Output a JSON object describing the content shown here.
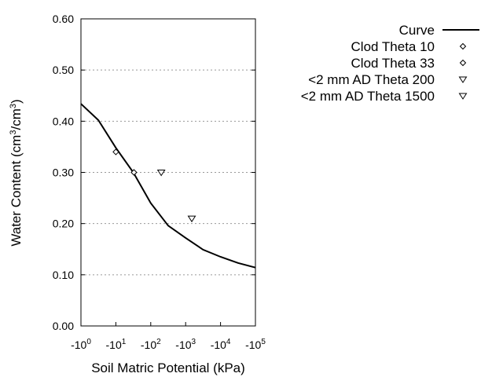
{
  "chart_data": {
    "type": "line",
    "title": "",
    "xlabel": "Soil Matric Potential (kPa)",
    "ylabel_parts": [
      "Water Content (cm",
      "3",
      "/cm",
      "3",
      ")"
    ],
    "x_scale": "log",
    "xlim": [
      1,
      100000
    ],
    "ylim": [
      0,
      0.6
    ],
    "x_ticks": [
      {
        "base": "-10",
        "exp": "0"
      },
      {
        "base": "-10",
        "exp": "1"
      },
      {
        "base": "-10",
        "exp": "2"
      },
      {
        "base": "-10",
        "exp": "3"
      },
      {
        "base": "-10",
        "exp": "4"
      },
      {
        "base": "-10",
        "exp": "5"
      }
    ],
    "y_ticks": [
      "0.00",
      "0.10",
      "0.20",
      "0.30",
      "0.40",
      "0.50",
      "0.60"
    ],
    "grid": "horizontal dotted",
    "legend_position": "right",
    "series": [
      {
        "name": "Curve",
        "marker": "line",
        "color": "#000000",
        "x": [
          1,
          3.16,
          10,
          31.6,
          100,
          316,
          1000,
          3162,
          10000,
          31623,
          100000
        ],
        "y": [
          0.434,
          0.402,
          0.348,
          0.3,
          0.24,
          0.196,
          0.172,
          0.149,
          0.135,
          0.123,
          0.114
        ]
      },
      {
        "name": "Clod Theta 10",
        "marker": "diamond",
        "x": [
          10
        ],
        "y": [
          0.34
        ]
      },
      {
        "name": "Clod Theta 33",
        "marker": "diamond",
        "x": [
          33
        ],
        "y": [
          0.3
        ]
      },
      {
        "name": "<2 mm AD Theta 200",
        "marker": "triangle-down",
        "x": [
          200
        ],
        "y": [
          0.3
        ]
      },
      {
        "name": "<2 mm AD Theta 1500",
        "marker": "triangle-down",
        "x": [
          1500
        ],
        "y": [
          0.21
        ]
      }
    ]
  }
}
